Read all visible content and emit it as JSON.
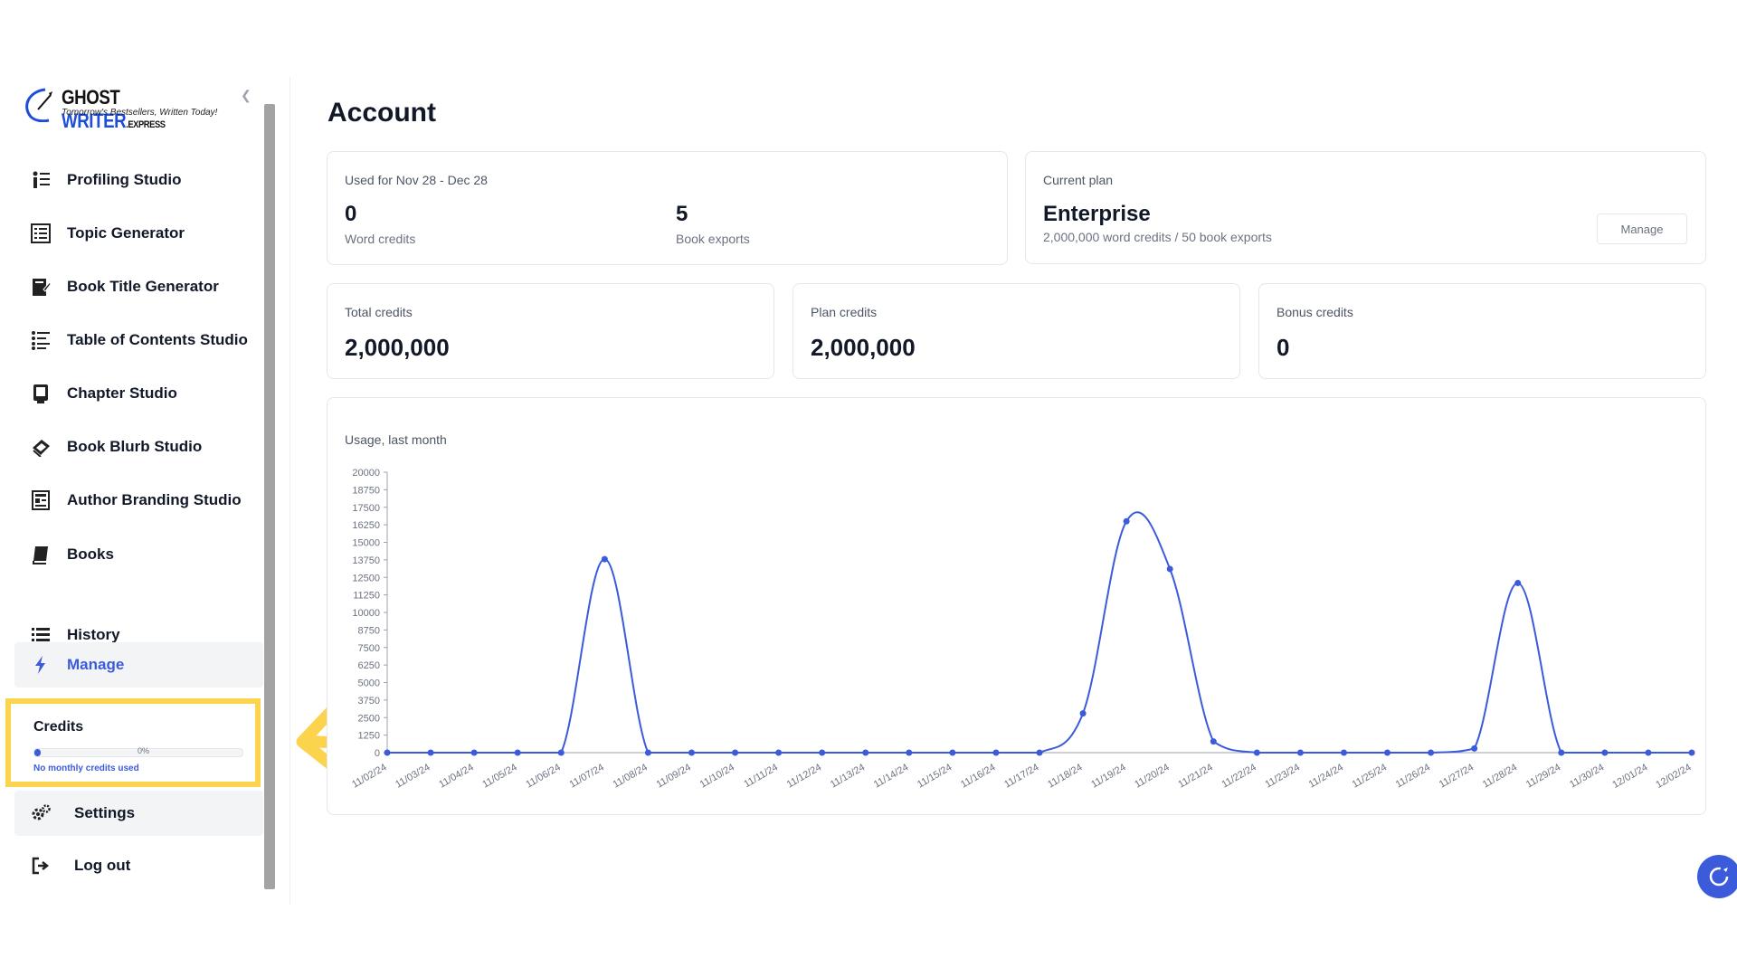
{
  "logo": {
    "part1": "GHOST ",
    "part2": "WRITER",
    "part3": ".EXPRESS",
    "tagline": "Tomorrow's Bestsellers, Written Today!"
  },
  "sidebar": {
    "items": [
      {
        "label": "Profiling Studio",
        "icon": "profiling-icon"
      },
      {
        "label": "Topic Generator",
        "icon": "topic-list-icon"
      },
      {
        "label": "Book Title Generator",
        "icon": "book-title-icon"
      },
      {
        "label": "Table of Contents Studio",
        "icon": "toc-icon"
      },
      {
        "label": "Chapter Studio",
        "icon": "chapter-icon"
      },
      {
        "label": "Book Blurb Studio",
        "icon": "blurb-icon"
      },
      {
        "label": "Author Branding Studio",
        "icon": "branding-icon"
      },
      {
        "label": "Books",
        "icon": "book-icon"
      },
      {
        "label": "History",
        "icon": "list-icon"
      },
      {
        "label": "Manage",
        "icon": "bolt-icon"
      },
      {
        "label": "Settings",
        "icon": "gears-icon"
      },
      {
        "label": "Log out",
        "icon": "logout-icon"
      }
    ]
  },
  "credits": {
    "title": "Credits",
    "percent_label": "0%",
    "percent_value": 0.02,
    "note": "No monthly credits used"
  },
  "account": {
    "title": "Account",
    "usage": {
      "label": "Used for Nov 28 - Dec 28",
      "word_credits_value": "0",
      "word_credits_label": "Word credits",
      "book_exports_value": "5",
      "book_exports_label": "Book exports"
    },
    "plan": {
      "label": "Current plan",
      "name": "Enterprise",
      "details": "2,000,000 word credits / 50 book exports",
      "manage_label": "Manage"
    },
    "total": {
      "label": "Total credits",
      "value": "2,000,000"
    },
    "plan_credits": {
      "label": "Plan credits",
      "value": "2,000,000"
    },
    "bonus": {
      "label": "Bonus credits",
      "value": "0"
    }
  },
  "chart_data": {
    "type": "line",
    "title": "Usage, last month",
    "xlabel": "",
    "ylabel": "",
    "ylim": [
      0,
      20000
    ],
    "yticks": [
      0,
      1250,
      2500,
      3750,
      5000,
      6250,
      7500,
      8750,
      10000,
      11250,
      12500,
      13750,
      15000,
      16250,
      17500,
      18750,
      20000
    ],
    "categories": [
      "11/02/24",
      "11/03/24",
      "11/04/24",
      "11/05/24",
      "11/06/24",
      "11/07/24",
      "11/08/24",
      "11/09/24",
      "11/10/24",
      "11/11/24",
      "11/12/24",
      "11/13/24",
      "11/14/24",
      "11/15/24",
      "11/16/24",
      "11/17/24",
      "11/18/24",
      "11/19/24",
      "11/20/24",
      "11/21/24",
      "11/22/24",
      "11/23/24",
      "11/24/24",
      "11/25/24",
      "11/26/24",
      "11/27/24",
      "11/28/24",
      "11/29/24",
      "11/30/24",
      "12/01/24",
      "12/02/24"
    ],
    "values": [
      0,
      0,
      0,
      0,
      0,
      13800,
      0,
      0,
      0,
      0,
      0,
      0,
      0,
      0,
      0,
      0,
      2800,
      16500,
      13100,
      800,
      0,
      0,
      0,
      0,
      0,
      300,
      12100,
      0,
      0,
      0,
      0
    ],
    "color": "#3b5bdb"
  },
  "colors": {
    "accent": "#3b5bdb",
    "highlight": "#fcd34d"
  }
}
